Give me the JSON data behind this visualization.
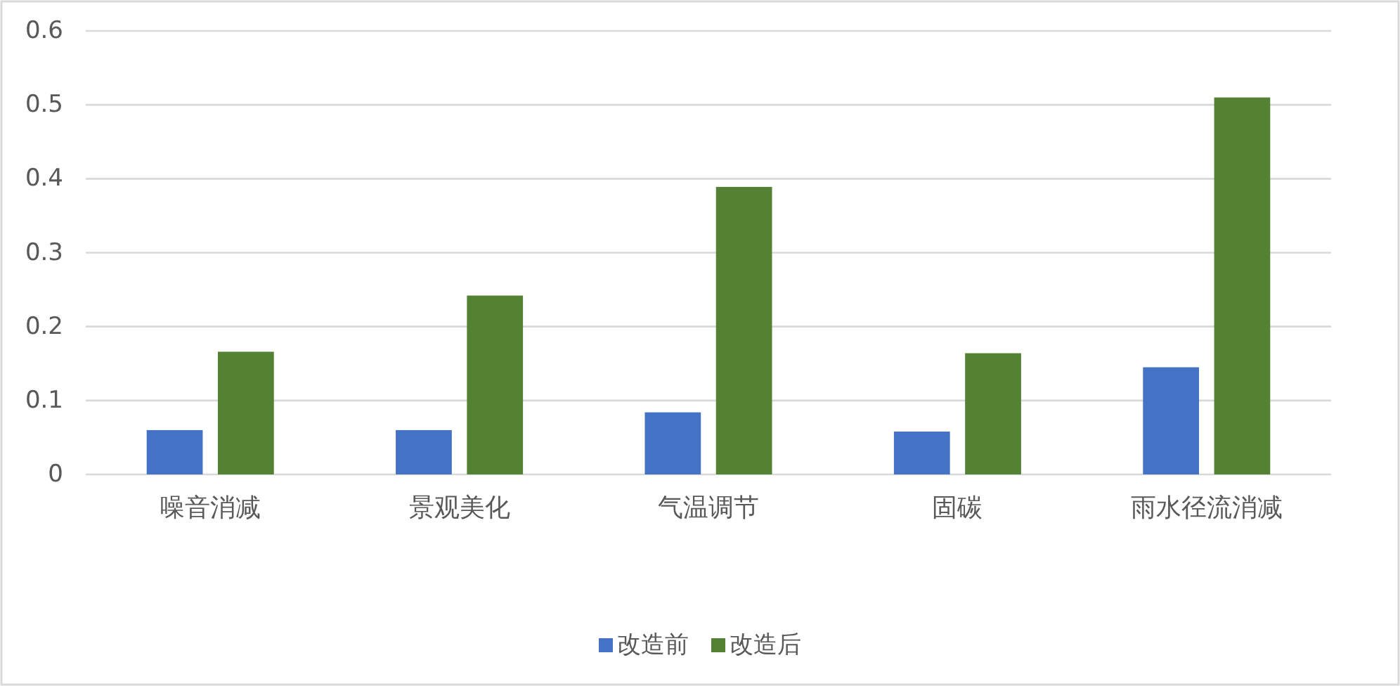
{
  "chart_data": {
    "type": "bar",
    "categories": [
      "噪音消减",
      "景观美化",
      "气温调节",
      "固碳",
      "雨水径流消减"
    ],
    "series": [
      {
        "name": "改造前",
        "color": "#4472c4",
        "values": [
          0.06,
          0.06,
          0.084,
          0.058,
          0.145
        ]
      },
      {
        "name": "改造后",
        "color": "#548235",
        "values": [
          0.166,
          0.242,
          0.389,
          0.164,
          0.51
        ]
      }
    ],
    "ylim": [
      0,
      0.6
    ],
    "yticks": [
      0,
      0.1,
      0.2,
      0.3,
      0.4,
      0.5,
      0.6
    ],
    "grid": "y",
    "legend": "bottom"
  }
}
